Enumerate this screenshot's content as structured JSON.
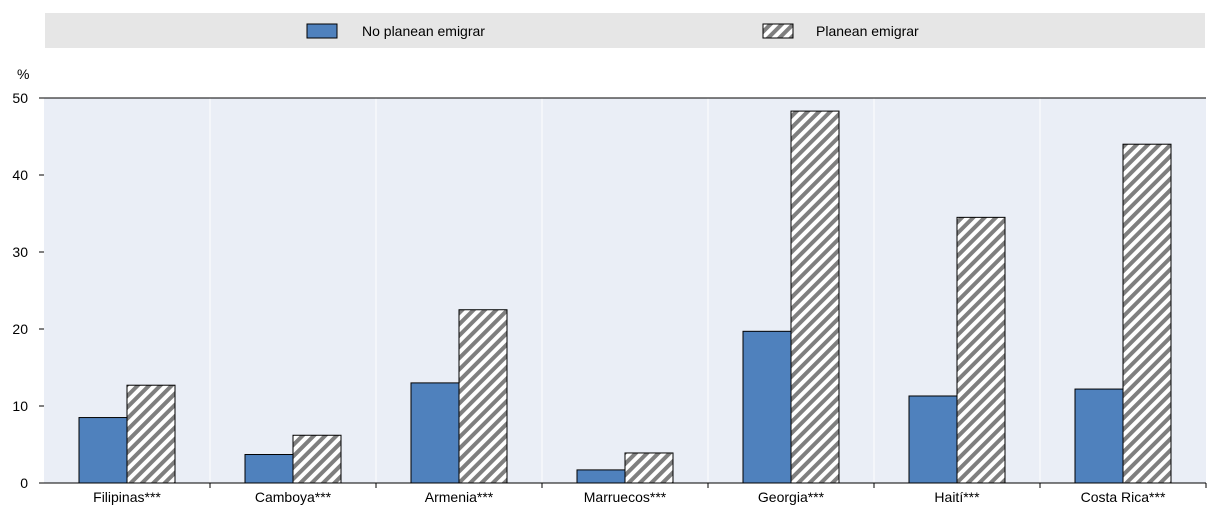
{
  "chart_data": {
    "type": "bar",
    "ylabel": "%",
    "ylim": [
      0,
      50
    ],
    "yticks": [
      0,
      10,
      20,
      30,
      40,
      50
    ],
    "categories": [
      "Filipinas***",
      "Camboya***",
      "Armenia***",
      "Marruecos***",
      "Georgia***",
      "Haití***",
      "Costa Rica***"
    ],
    "series": [
      {
        "name": "No planean emigrar",
        "values": [
          8.5,
          3.7,
          13.0,
          1.7,
          19.7,
          11.3,
          12.2
        ],
        "color": "#4f81bd",
        "pattern": "solid"
      },
      {
        "name": "Planean emigrar",
        "values": [
          12.7,
          6.2,
          22.5,
          3.9,
          48.3,
          34.5,
          44.0
        ],
        "color": "#808080",
        "pattern": "diagonal-hatch"
      }
    ],
    "grid": "vertical-separators",
    "legend_position": "top"
  },
  "colors": {
    "plot_background": "#eaeef6",
    "legend_background": "#e6e6e6",
    "grid": "#ffffff",
    "axis": "#000000"
  }
}
